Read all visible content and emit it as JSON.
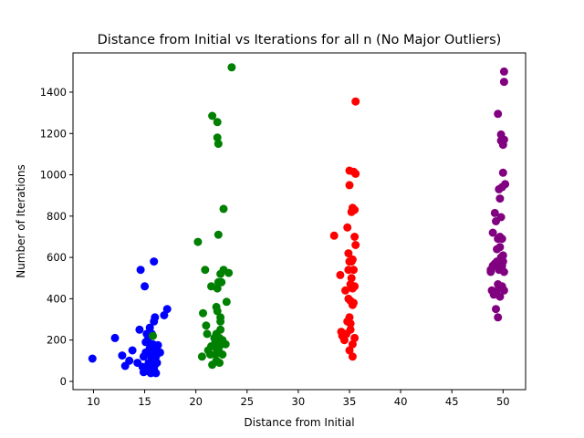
{
  "chart_data": {
    "type": "scatter",
    "title": "Distance from Initial vs Iterations for all n (No Major Outliers)",
    "xlabel": "Distance from Initial",
    "ylabel": "Number of Iterations",
    "xlim": [
      8.0,
      52.2
    ],
    "ylim": [
      -40,
      1590
    ],
    "xticks": [
      10,
      15,
      20,
      25,
      30,
      35,
      40,
      45,
      50
    ],
    "yticks": [
      0,
      200,
      400,
      600,
      800,
      1000,
      1200,
      1400
    ],
    "grid": false,
    "series": [
      {
        "color": "#0000ff",
        "points": [
          [
            9.9,
            110
          ],
          [
            12.1,
            210
          ],
          [
            12.8,
            125
          ],
          [
            13.1,
            75
          ],
          [
            13.5,
            100
          ],
          [
            13.8,
            150
          ],
          [
            14.3,
            90
          ],
          [
            14.5,
            250
          ],
          [
            14.6,
            540
          ],
          [
            14.8,
            70
          ],
          [
            14.9,
            45
          ],
          [
            14.9,
            120
          ],
          [
            15.0,
            460
          ],
          [
            15.1,
            140
          ],
          [
            15.1,
            190
          ],
          [
            15.2,
            230
          ],
          [
            15.2,
            60
          ],
          [
            15.3,
            50
          ],
          [
            15.4,
            90
          ],
          [
            15.4,
            130
          ],
          [
            15.5,
            160
          ],
          [
            15.5,
            260
          ],
          [
            15.6,
            70
          ],
          [
            15.6,
            40
          ],
          [
            15.7,
            110
          ],
          [
            15.7,
            230
          ],
          [
            15.8,
            150
          ],
          [
            15.8,
            180
          ],
          [
            15.9,
            60
          ],
          [
            15.9,
            580
          ],
          [
            15.9,
            290
          ],
          [
            16.0,
            310
          ],
          [
            16.0,
            80
          ],
          [
            16.0,
            160
          ],
          [
            16.1,
            40
          ],
          [
            16.1,
            120
          ],
          [
            16.2,
            90
          ],
          [
            16.3,
            175
          ],
          [
            16.5,
            140
          ],
          [
            16.9,
            320
          ],
          [
            17.2,
            350
          ],
          [
            15.3,
            200
          ]
        ]
      },
      {
        "color": "#008000",
        "points": [
          [
            15.8,
            220
          ],
          [
            20.2,
            675
          ],
          [
            20.6,
            120
          ],
          [
            20.7,
            330
          ],
          [
            20.9,
            540
          ],
          [
            21.0,
            270
          ],
          [
            21.1,
            230
          ],
          [
            21.2,
            150
          ],
          [
            21.4,
            130
          ],
          [
            21.5,
            170
          ],
          [
            21.5,
            460
          ],
          [
            21.6,
            80
          ],
          [
            21.6,
            1285
          ],
          [
            21.8,
            210
          ],
          [
            21.9,
            190
          ],
          [
            21.9,
            130
          ],
          [
            22.0,
            230
          ],
          [
            22.0,
            160
          ],
          [
            22.0,
            100
          ],
          [
            22.1,
            1255
          ],
          [
            22.1,
            1180
          ],
          [
            22.1,
            340
          ],
          [
            22.1,
            450
          ],
          [
            22.2,
            480
          ],
          [
            22.2,
            710
          ],
          [
            22.2,
            1150
          ],
          [
            22.3,
            210
          ],
          [
            22.3,
            170
          ],
          [
            22.3,
            140
          ],
          [
            22.3,
            90
          ],
          [
            22.4,
            310
          ],
          [
            22.4,
            290
          ],
          [
            22.4,
            250
          ],
          [
            22.4,
            520
          ],
          [
            22.5,
            480
          ],
          [
            22.6,
            200
          ],
          [
            22.6,
            130
          ],
          [
            22.7,
            540
          ],
          [
            22.7,
            835
          ],
          [
            22.9,
            180
          ],
          [
            23.0,
            385
          ],
          [
            23.2,
            525
          ],
          [
            23.5,
            1520
          ],
          [
            22.0,
            360
          ]
        ]
      },
      {
        "color": "#ff0000",
        "points": [
          [
            33.5,
            705
          ],
          [
            34.1,
            515
          ],
          [
            34.2,
            240
          ],
          [
            34.3,
            220
          ],
          [
            34.5,
            200
          ],
          [
            34.6,
            440
          ],
          [
            34.7,
            230
          ],
          [
            34.8,
            290
          ],
          [
            34.8,
            745
          ],
          [
            34.9,
            400
          ],
          [
            34.9,
            540
          ],
          [
            34.9,
            620
          ],
          [
            35.0,
            1020
          ],
          [
            35.0,
            950
          ],
          [
            35.0,
            150
          ],
          [
            35.0,
            310
          ],
          [
            35.0,
            580
          ],
          [
            35.1,
            470
          ],
          [
            35.1,
            280
          ],
          [
            35.1,
            250
          ],
          [
            35.1,
            390
          ],
          [
            35.2,
            820
          ],
          [
            35.2,
            580
          ],
          [
            35.2,
            500
          ],
          [
            35.3,
            840
          ],
          [
            35.3,
            450
          ],
          [
            35.3,
            370
          ],
          [
            35.3,
            180
          ],
          [
            35.3,
            120
          ],
          [
            35.4,
            1015
          ],
          [
            35.4,
            380
          ],
          [
            35.4,
            540
          ],
          [
            35.5,
            700
          ],
          [
            35.5,
            460
          ],
          [
            35.5,
            210
          ],
          [
            35.6,
            1355
          ],
          [
            35.6,
            660
          ],
          [
            35.6,
            1005
          ],
          [
            35.5,
            830
          ],
          [
            35.3,
            590
          ]
        ]
      },
      {
        "color": "#800080",
        "points": [
          [
            48.8,
            530
          ],
          [
            48.8,
            540
          ],
          [
            48.9,
            440
          ],
          [
            49.0,
            720
          ],
          [
            49.0,
            560
          ],
          [
            49.1,
            420
          ],
          [
            49.2,
            570
          ],
          [
            49.2,
            815
          ],
          [
            49.3,
            775
          ],
          [
            49.3,
            350
          ],
          [
            49.3,
            430
          ],
          [
            49.4,
            640
          ],
          [
            49.4,
            580
          ],
          [
            49.5,
            1295
          ],
          [
            49.5,
            690
          ],
          [
            49.5,
            470
          ],
          [
            49.5,
            310
          ],
          [
            49.6,
            930
          ],
          [
            49.6,
            570
          ],
          [
            49.6,
            540
          ],
          [
            49.7,
            885
          ],
          [
            49.7,
            410
          ],
          [
            49.7,
            700
          ],
          [
            49.7,
            650
          ],
          [
            49.8,
            1195
          ],
          [
            49.8,
            1165
          ],
          [
            49.8,
            795
          ],
          [
            49.8,
            600
          ],
          [
            49.9,
            940
          ],
          [
            49.9,
            540
          ],
          [
            49.9,
            560
          ],
          [
            49.9,
            460
          ],
          [
            50.0,
            1010
          ],
          [
            50.0,
            1145
          ],
          [
            50.0,
            580
          ],
          [
            50.0,
            610
          ],
          [
            50.1,
            1500
          ],
          [
            50.1,
            1450
          ],
          [
            50.1,
            1170
          ],
          [
            50.1,
            530
          ],
          [
            50.2,
            955
          ],
          [
            50.1,
            440
          ],
          [
            49.6,
            450
          ],
          [
            49.9,
            690
          ]
        ]
      }
    ]
  }
}
